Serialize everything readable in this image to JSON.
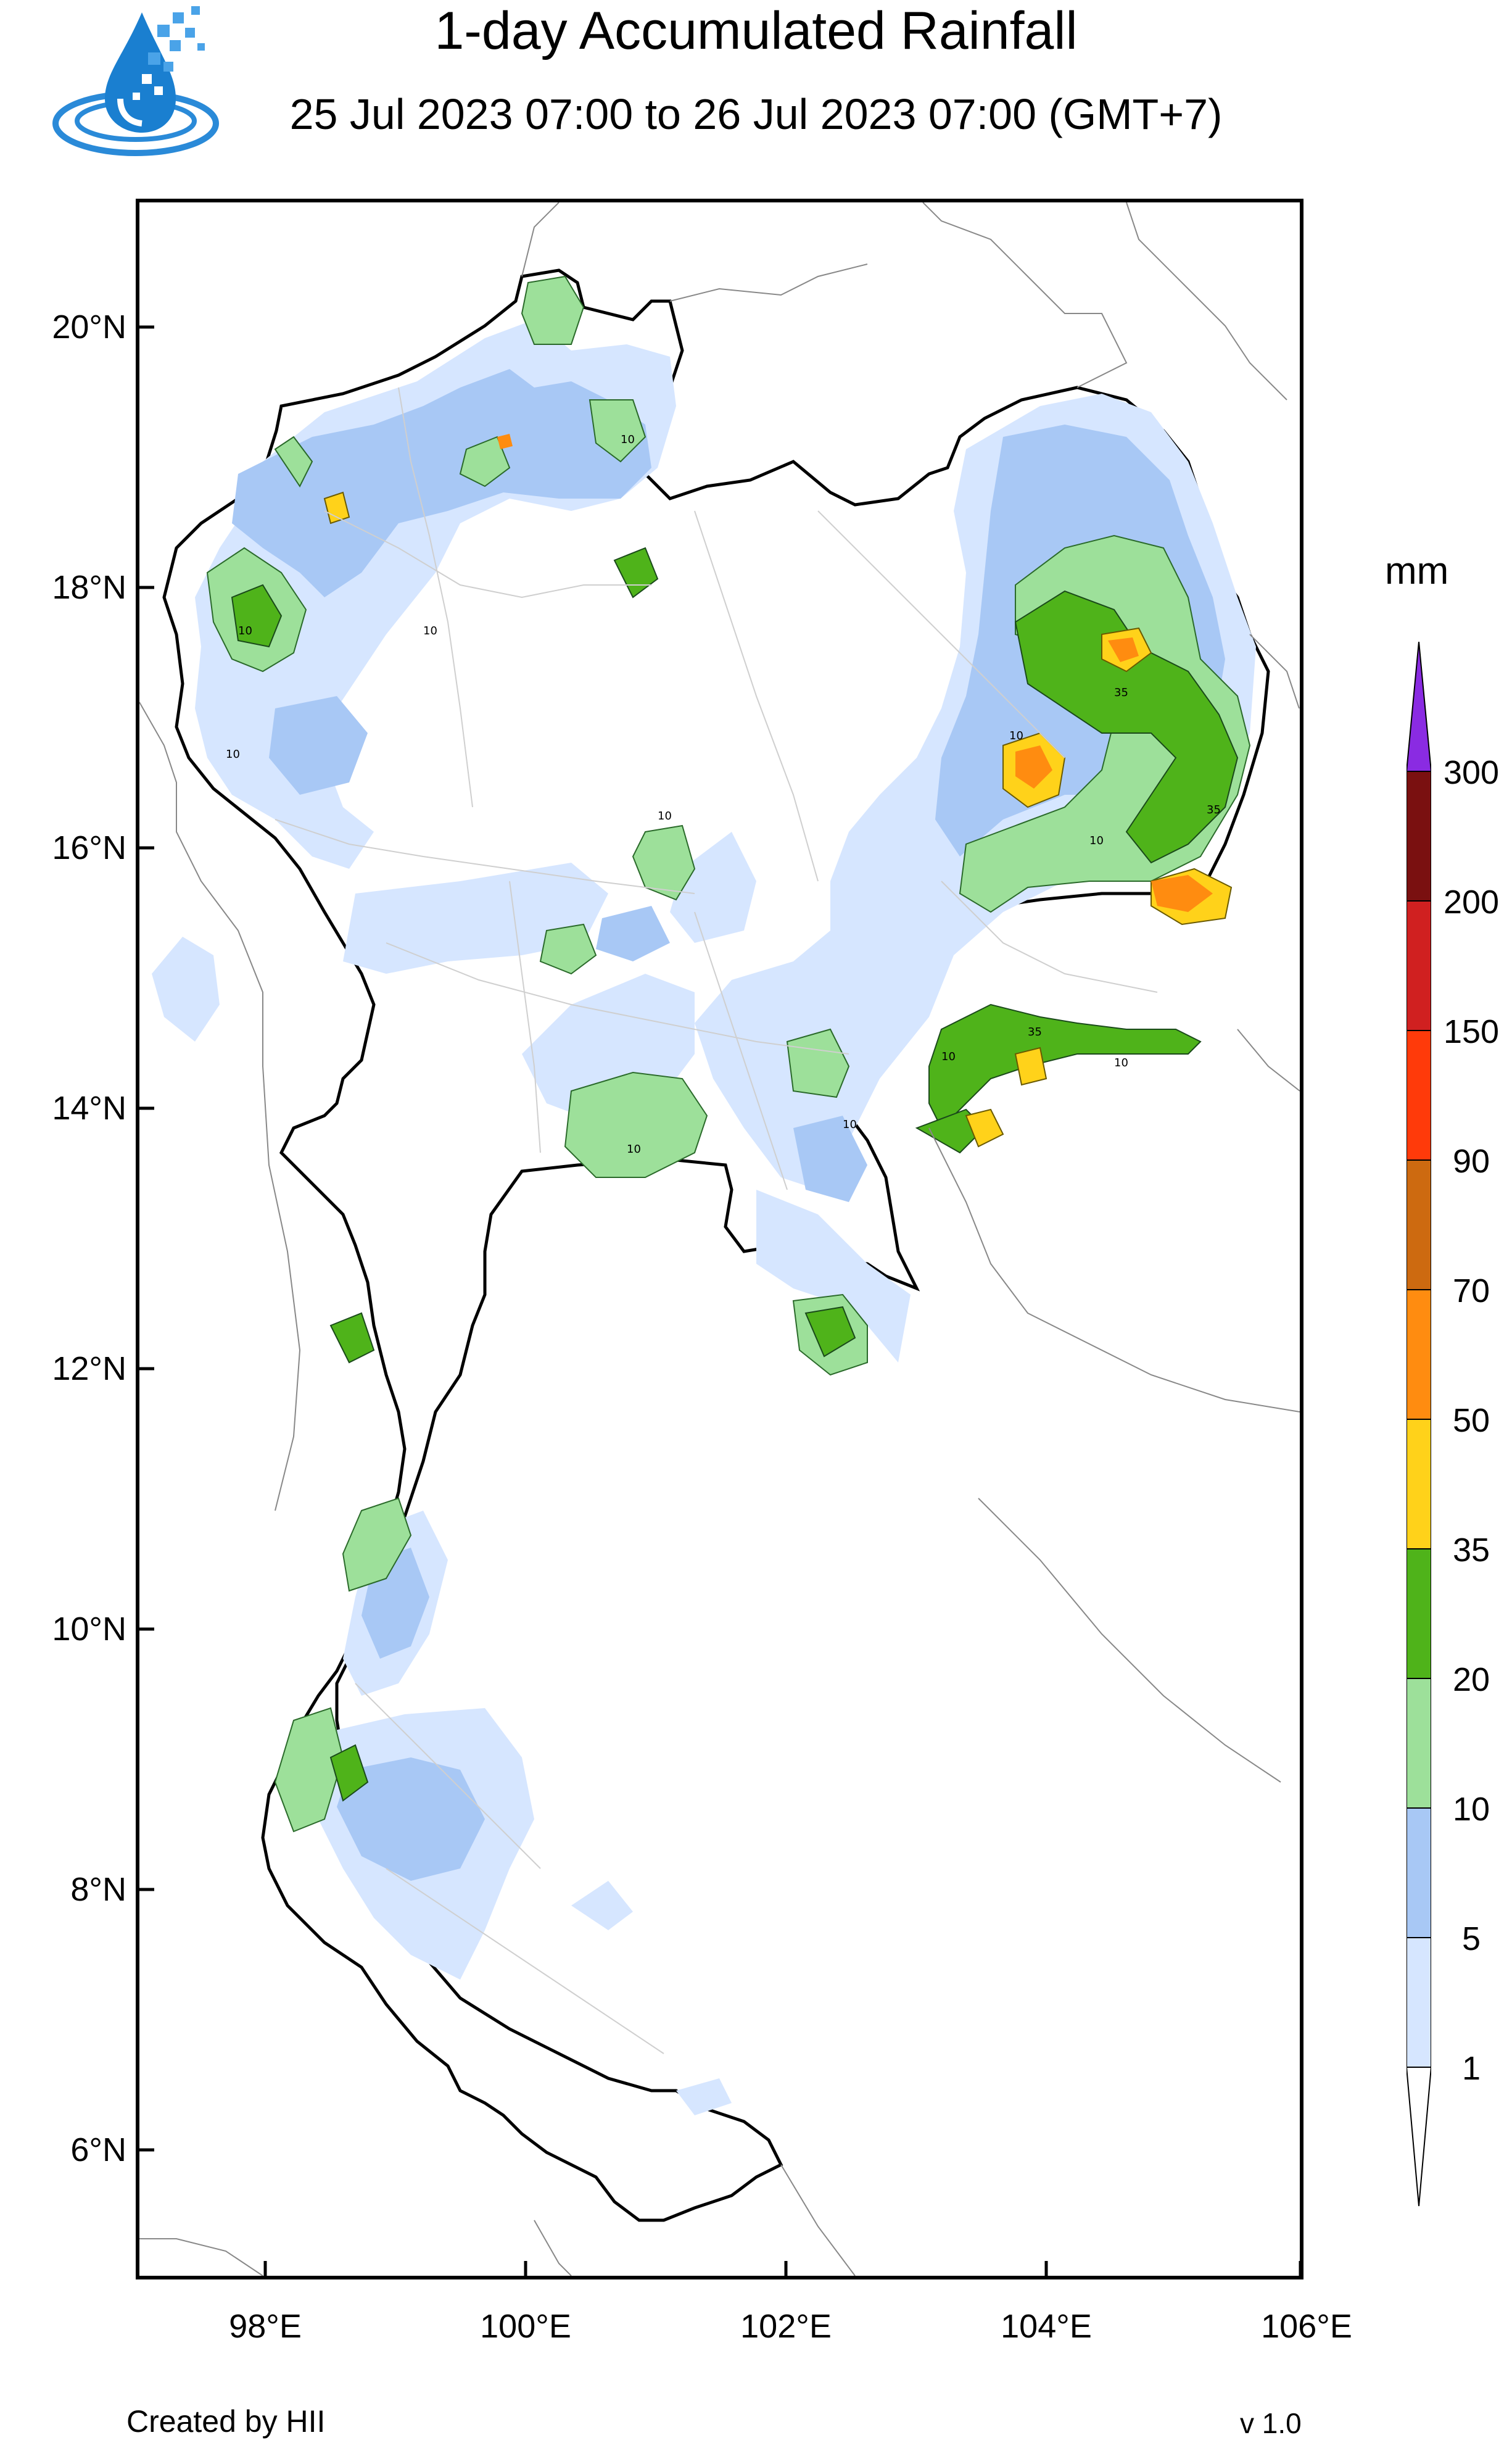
{
  "title": "1-day Accumulated Rainfall",
  "subtitle": "25 Jul 2023 07:00 to 26 Jul 2023 07:00 (GMT+7)",
  "axes": {
    "lat_labels": [
      "20°N",
      "18°N",
      "16°N",
      "14°N",
      "12°N",
      "10°N",
      "8°N",
      "6°N"
    ],
    "lon_labels": [
      "98°E",
      "100°E",
      "102°E",
      "104°E",
      "106°E"
    ]
  },
  "colorbar": {
    "unit": "mm",
    "levels": [
      "300",
      "200",
      "150",
      "90",
      "70",
      "50",
      "35",
      "20",
      "10",
      "5",
      "1"
    ],
    "colors": [
      "#8a2be2",
      "#7a1010",
      "#d02020",
      "#ff3a0a",
      "#cd6a10",
      "#ff8c10",
      "#ffd21a",
      "#4fb31a",
      "#9de09a",
      "#a8c8f5",
      "#d6e6ff",
      "#ffffff"
    ]
  },
  "contour_labels": [
    "10",
    "35"
  ],
  "credit": "Created by HII",
  "version": "v 1.0"
}
